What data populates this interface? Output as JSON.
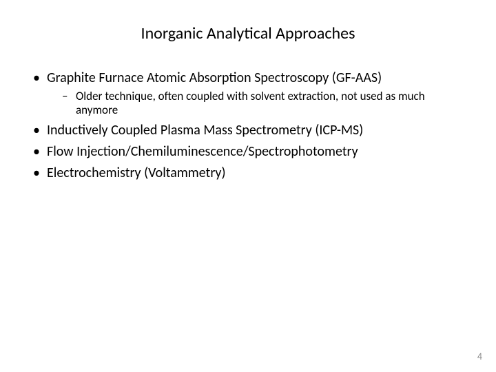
{
  "slide": {
    "title": "Inorganic Analytical Approaches",
    "bullets": [
      {
        "text": "Graphite Furnace Atomic Absorption Spectroscopy (GF-AAS)",
        "sub": [
          "Older technique, often coupled with solvent extraction, not used as much anymore"
        ]
      },
      {
        "text": "Inductively Coupled Plasma Mass Spectrometry (ICP-MS)"
      },
      {
        "text": "Flow Injection/Chemiluminescence/Spectrophotometry"
      },
      {
        "text": "Electrochemistry (Voltammetry)"
      }
    ],
    "page_number": "4"
  },
  "style": {
    "background_color": "#ffffff",
    "title_fontsize": 24,
    "body_fontsize": 20,
    "sub_fontsize": 17,
    "page_number_color": "#8a8a8a",
    "text_color": "#000000",
    "font_family": "Calibri"
  }
}
